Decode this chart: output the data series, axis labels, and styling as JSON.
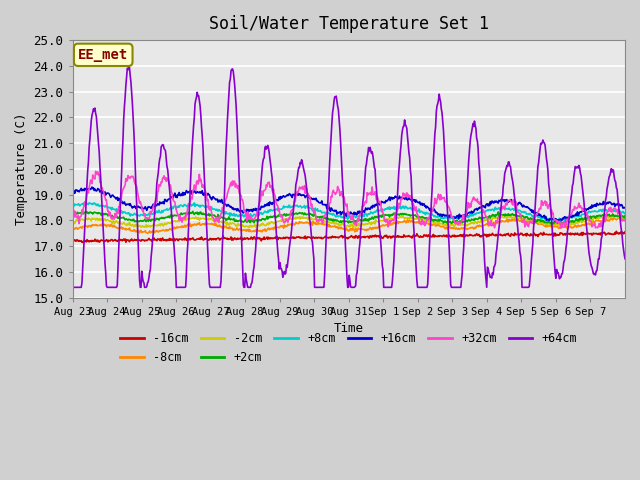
{
  "title": "Soil/Water Temperature Set 1",
  "xlabel": "Time",
  "ylabel": "Temperature (C)",
  "ylim": [
    15.0,
    25.0
  ],
  "yticks": [
    15.0,
    16.0,
    17.0,
    18.0,
    19.0,
    20.0,
    21.0,
    22.0,
    23.0,
    24.0,
    25.0
  ],
  "bg_color": "#e8e8e8",
  "series": {
    "-16cm": {
      "color": "#cc0000",
      "lw": 1.2
    },
    "-8cm": {
      "color": "#ff8800",
      "lw": 1.2
    },
    "-2cm": {
      "color": "#cccc00",
      "lw": 1.2
    },
    "+2cm": {
      "color": "#00aa00",
      "lw": 1.2
    },
    "+8cm": {
      "color": "#00cccc",
      "lw": 1.2
    },
    "+16cm": {
      "color": "#0000cc",
      "lw": 1.2
    },
    "+32cm": {
      "color": "#ff44cc",
      "lw": 1.2
    },
    "+64cm": {
      "color": "#8800cc",
      "lw": 1.2
    }
  },
  "annotation_text": "EE_met",
  "annotation_color": "#880000",
  "annotation_bg": "#ffffcc",
  "annotation_border": "#888800",
  "x_tick_labels": [
    "Aug 23",
    "Aug 24",
    "Aug 25",
    "Aug 26",
    "Aug 27",
    "Aug 28",
    "Aug 29",
    "Aug 30",
    "Aug 31",
    "Sep 1",
    "Sep 2",
    "Sep 3",
    "Sep 4",
    "Sep 5",
    "Sep 6",
    "Sep 7"
  ],
  "n_days": 16
}
